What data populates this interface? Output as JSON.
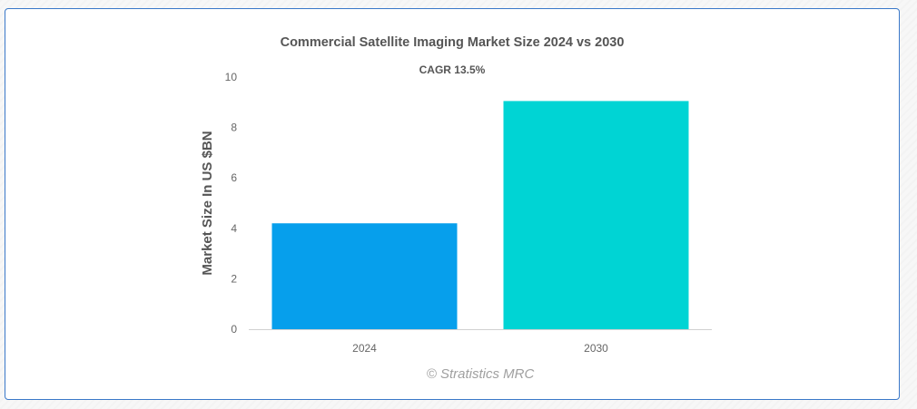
{
  "chart_data": {
    "type": "bar",
    "title": "Commercial Satellite Imaging Market Size 2024 vs 2030",
    "subtitle": "CAGR 13.5%",
    "xlabel": "",
    "ylabel": "Market Size In US $BN",
    "categories": [
      "2024",
      "2030"
    ],
    "values": [
      4.2,
      9.05
    ],
    "colors": [
      "#069fec",
      "#00d4d4"
    ],
    "ylim": [
      0,
      10
    ],
    "yticks": [
      0,
      2,
      4,
      6,
      8,
      10
    ],
    "grid": false,
    "legend": "none"
  },
  "credit": "© Stratistics MRC"
}
